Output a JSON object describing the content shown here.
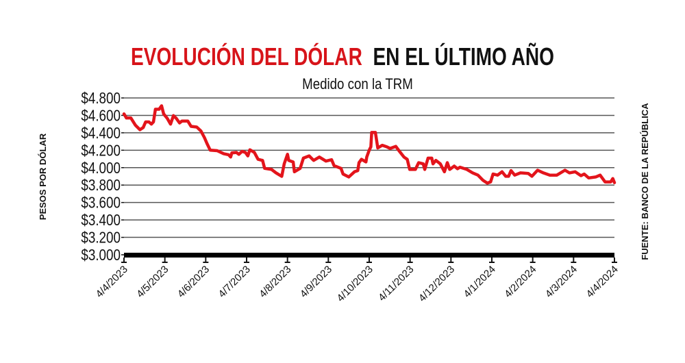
{
  "chart_data": {
    "type": "line",
    "title_part1": "EVOLUCIÓN DEL DÓLAR",
    "title_part2": "EN EL ÚLTIMO AÑO",
    "subtitle": "Medido con la TRM",
    "ylabel": "PESOS POR DÓLAR",
    "source": "FUENTE: BANCO DE LA REPÚBLICA",
    "xlabel": "",
    "ylim": [
      3000,
      4800
    ],
    "yticks": [
      4800,
      4600,
      4400,
      4200,
      4000,
      3800,
      3600,
      3400,
      3200,
      3000
    ],
    "ytick_labels": [
      "$4.800",
      "$4.600",
      "$4.400",
      "$4.200",
      "$4.000",
      "$3.800",
      "$3.600",
      "$3.400",
      "$3.200",
      "$3.000"
    ],
    "x_unit": "months since 4/4/2023",
    "xlim": [
      0,
      12
    ],
    "xtick_labels": [
      "4/4/2023",
      "4/5/2023",
      "4/6/2023",
      "4/7/2023",
      "4/8/2023",
      "4/9/2023",
      "4/10/2023",
      "4/11/2023",
      "4/12/2023",
      "4/1/2024",
      "4/2/2024",
      "4/3/2024",
      "4/4/2024"
    ],
    "grid": true,
    "colors": {
      "line": "#e3141b",
      "title_accent": "#d7141a",
      "text": "#111111"
    },
    "series": [
      {
        "name": "TRM",
        "x": [
          0,
          0.06,
          0.17,
          0.28,
          0.39,
          0.47,
          0.53,
          0.61,
          0.67,
          0.72,
          0.77,
          0.86,
          0.92,
          0.97,
          1.06,
          1.14,
          1.21,
          1.28,
          1.36,
          1.42,
          1.56,
          1.64,
          1.78,
          1.88,
          1.97,
          2.03,
          2.11,
          2.28,
          2.44,
          2.56,
          2.61,
          2.64,
          2.75,
          2.81,
          2.89,
          2.97,
          3.03,
          3.08,
          3.19,
          3.28,
          3.39,
          3.44,
          3.61,
          3.72,
          3.86,
          3.92,
          4.0,
          4.03,
          4.14,
          4.17,
          4.31,
          4.39,
          4.53,
          4.64,
          4.78,
          4.94,
          5.08,
          5.14,
          5.31,
          5.36,
          5.5,
          5.64,
          5.72,
          5.75,
          5.81,
          5.92,
          5.94,
          6.0,
          6.04,
          6.06,
          6.15,
          6.21,
          6.32,
          6.43,
          6.51,
          6.65,
          6.74,
          6.85,
          6.93,
          6.99,
          7.13,
          7.21,
          7.32,
          7.36,
          7.44,
          7.53,
          7.56,
          7.63,
          7.74,
          7.84,
          7.91,
          7.97,
          8.08,
          8.16,
          8.22,
          8.39,
          8.53,
          8.66,
          8.78,
          8.89,
          8.97,
          9.03,
          9.14,
          9.25,
          9.34,
          9.41,
          9.47,
          9.56,
          9.7,
          9.89,
          9.98,
          10.12,
          10.26,
          10.42,
          10.59,
          10.79,
          10.9,
          11.04,
          11.18,
          11.26,
          11.37,
          11.54,
          11.65,
          11.77,
          11.91,
          11.96,
          12.0
        ],
        "y": [
          4617,
          4570,
          4570,
          4487,
          4435,
          4460,
          4525,
          4525,
          4500,
          4525,
          4670,
          4670,
          4710,
          4617,
          4565,
          4500,
          4597,
          4565,
          4513,
          4535,
          4535,
          4474,
          4466,
          4422,
          4344,
          4278,
          4200,
          4195,
          4160,
          4148,
          4122,
          4170,
          4174,
          4153,
          4187,
          4174,
          4135,
          4205,
          4174,
          4096,
          4083,
          3992,
          3979,
          3940,
          3900,
          4044,
          4153,
          4083,
          4065,
          3953,
          3992,
          4109,
          4135,
          4083,
          4122,
          4075,
          4091,
          4023,
          3992,
          3927,
          3893,
          3953,
          3966,
          4057,
          4096,
          4065,
          4122,
          4200,
          4239,
          4404,
          4404,
          4226,
          4257,
          4239,
          4221,
          4244,
          4187,
          4122,
          4096,
          3979,
          3979,
          4057,
          4044,
          3979,
          4109,
          4109,
          4044,
          4083,
          4044,
          3953,
          4057,
          3979,
          4018,
          3987,
          4005,
          3979,
          3940,
          3914,
          3856,
          3822,
          3836,
          3927,
          3914,
          3953,
          3901,
          3901,
          3966,
          3914,
          3940,
          3934,
          3901,
          3971,
          3940,
          3914,
          3914,
          3971,
          3940,
          3953,
          3908,
          3927,
          3882,
          3893,
          3914,
          3836,
          3836,
          3875,
          3828
        ]
      }
    ]
  }
}
